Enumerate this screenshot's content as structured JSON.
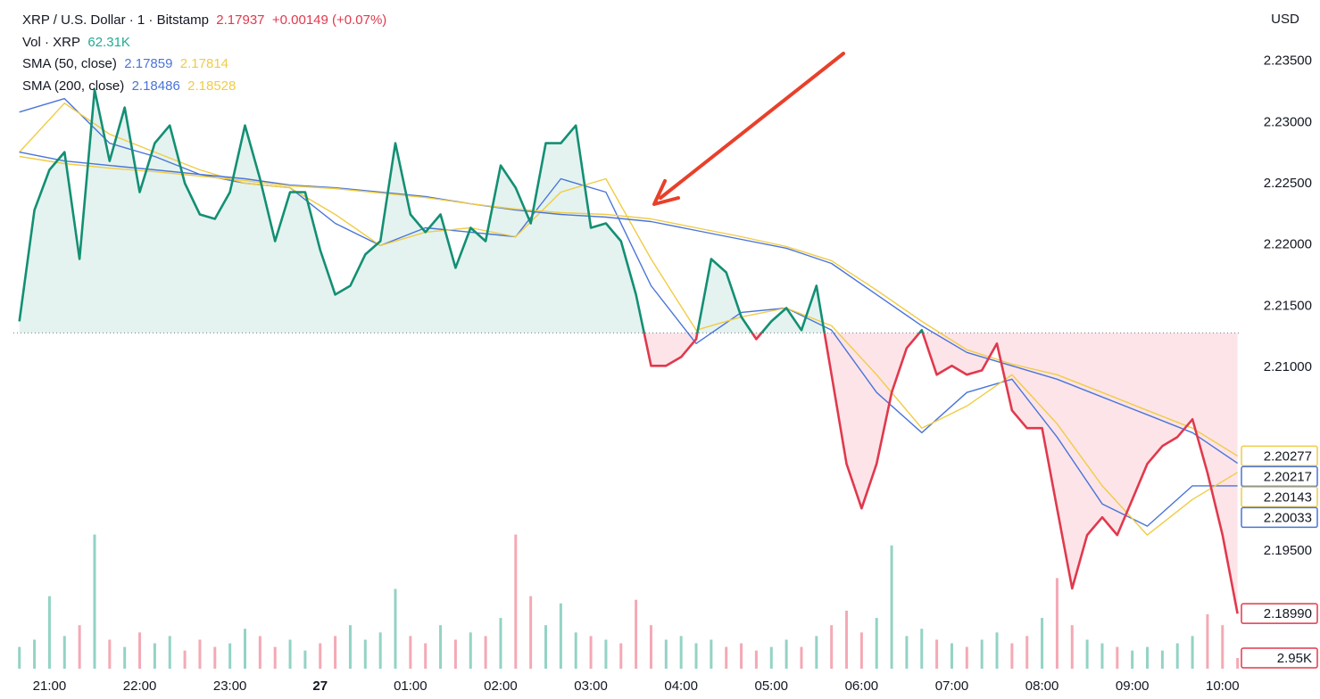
{
  "chart_data": {
    "type": "line",
    "currency": "USD",
    "legend": {
      "symbol": "XRP / U.S. Dollar · 1 · Bitstamp",
      "price": "2.17937",
      "change": "+0.00149 (+0.07%)",
      "volume_label": "Vol · XRP",
      "volume_value": "62.31K",
      "sma": [
        {
          "name": "SMA (50, close)",
          "values": [
            "2.17859",
            "2.17814"
          ]
        },
        {
          "name": "SMA (200, close)",
          "values": [
            "2.18486",
            "2.18528"
          ]
        }
      ]
    },
    "x": [
      "20:40",
      "20:50",
      "21:00",
      "21:10",
      "21:20",
      "21:30",
      "21:40",
      "21:50",
      "22:00",
      "22:10",
      "22:20",
      "22:30",
      "22:40",
      "22:50",
      "23:00",
      "23:10",
      "23:20",
      "23:30",
      "23:40",
      "23:50",
      "00:00",
      "00:10",
      "00:20",
      "00:30",
      "00:40",
      "00:50",
      "01:00",
      "01:10",
      "01:20",
      "01:30",
      "01:40",
      "01:50",
      "02:00",
      "02:10",
      "02:20",
      "02:30",
      "02:40",
      "02:50",
      "03:00",
      "03:10",
      "03:20",
      "03:30",
      "03:40",
      "03:50",
      "04:00",
      "04:10",
      "04:20",
      "04:30",
      "04:40",
      "04:50",
      "05:00",
      "05:10",
      "05:20",
      "05:30",
      "05:40",
      "05:50",
      "06:00",
      "06:10",
      "06:20",
      "06:30",
      "06:40",
      "06:50",
      "07:00",
      "07:10",
      "07:20",
      "07:30",
      "07:40",
      "07:50",
      "08:00",
      "08:10",
      "08:20",
      "08:30",
      "08:40",
      "08:50",
      "09:00",
      "09:10",
      "09:20",
      "09:30",
      "09:40",
      "09:50",
      "10:00",
      "10:10"
    ],
    "xlim": [
      "20:36",
      "10:12"
    ],
    "xticks": [
      "21:00",
      "22:00",
      "23:00",
      {
        "value": "00:00",
        "label": "27"
      },
      "01:00",
      "02:00",
      "03:00",
      "04:00",
      "05:00",
      "06:00",
      "07:00",
      "08:00",
      "09:00",
      "10:00"
    ],
    "ylim": [
      2.1854,
      2.24
    ],
    "yticks": [
      {
        "value": 2.235,
        "label": "2.23500"
      },
      {
        "value": 2.23,
        "label": "2.23000"
      },
      {
        "value": 2.225,
        "label": "2.22500"
      },
      {
        "value": 2.22,
        "label": "2.22000"
      },
      {
        "value": 2.215,
        "label": "2.21500"
      },
      {
        "value": 2.21,
        "label": "2.21000"
      },
      {
        "value": 2.195,
        "label": "2.19500"
      }
    ],
    "grid": false,
    "price": {
      "values": [
        2.21376,
        2.22285,
        2.22613,
        2.22758,
        2.21885,
        2.23267,
        2.22685,
        2.23122,
        2.22431,
        2.22831,
        2.22976,
        2.22504,
        2.22249,
        2.22213,
        2.22431,
        2.22976,
        2.2254,
        2.22031,
        2.22431,
        2.22431,
        2.21958,
        2.21595,
        2.21667,
        2.21922,
        2.22031,
        2.22831,
        2.22249,
        2.22104,
        2.22249,
        2.21813,
        2.2214,
        2.22031,
        2.22649,
        2.22467,
        2.22176,
        2.22831,
        2.22831,
        2.22976,
        2.2214,
        2.22176,
        2.22031,
        2.21595,
        2.21013,
        2.21013,
        2.21085,
        2.21231,
        2.21885,
        2.21776,
        2.21413,
        2.21231,
        2.21376,
        2.21485,
        2.21304,
        2.21667,
        2.2094,
        2.20213,
        2.19849,
        2.20213,
        2.20795,
        2.21158,
        2.21304,
        2.2094,
        2.21013,
        2.2094,
        2.20976,
        2.21195,
        2.20649,
        2.20504,
        2.20504,
        2.19849,
        2.19195,
        2.19631,
        2.19776,
        2.19631,
        2.19922,
        2.20213,
        2.20358,
        2.20431,
        2.20576,
        2.2014,
        2.19631,
        2.1899
      ],
      "baseline": 2.21282,
      "up_color": "#138f74",
      "down_color": "#e0394d",
      "up_fill": "#e4f3ef",
      "down_fill": "#fde4e8",
      "last_label": "2.18990"
    },
    "series": [
      {
        "color": "#4a74d9",
        "x": [
          "20:40",
          "21:10",
          "21:40",
          "22:10",
          "22:40",
          "23:10",
          "23:40",
          "00:10",
          "00:40",
          "01:10",
          "01:40",
          "02:10",
          "02:40",
          "03:10",
          "03:40",
          "04:10",
          "04:40",
          "05:10",
          "05:40",
          "06:10",
          "06:40",
          "07:10",
          "07:40",
          "08:10",
          "08:40",
          "09:10",
          "09:40",
          "10:10"
        ],
        "values": [
          2.23085,
          2.23195,
          2.22831,
          2.22722,
          2.22576,
          2.22504,
          2.22467,
          2.22176,
          2.21995,
          2.2214,
          2.22104,
          2.22067,
          2.2254,
          2.22431,
          2.21667,
          2.21195,
          2.21449,
          2.21485,
          2.21304,
          2.20795,
          2.20467,
          2.20795,
          2.20904,
          2.20431,
          2.19885,
          2.19704,
          2.20033,
          2.20033
        ]
      },
      {
        "color": "#f0cc45",
        "x": [
          "20:40",
          "21:10",
          "21:40",
          "22:10",
          "22:40",
          "23:10",
          "23:40",
          "00:10",
          "00:40",
          "01:10",
          "01:40",
          "02:10",
          "02:40",
          "03:10",
          "03:40",
          "04:10",
          "04:40",
          "05:10",
          "05:40",
          "06:10",
          "06:40",
          "07:10",
          "07:40",
          "08:10",
          "08:40",
          "09:10",
          "09:40",
          "10:10"
        ],
        "values": [
          2.22758,
          2.23158,
          2.22904,
          2.22758,
          2.22613,
          2.22504,
          2.22467,
          2.22249,
          2.21995,
          2.22104,
          2.2214,
          2.22067,
          2.22431,
          2.2254,
          2.21885,
          2.21304,
          2.21413,
          2.21485,
          2.2134,
          2.2094,
          2.20504,
          2.20685,
          2.2094,
          2.2054,
          2.20033,
          2.19631,
          2.19922,
          2.20143
        ]
      },
      {
        "color": "#4a74d9",
        "x": [
          "20:40",
          "21:10",
          "21:40",
          "22:10",
          "22:40",
          "23:10",
          "23:40",
          "00:10",
          "00:40",
          "01:10",
          "01:40",
          "02:10",
          "02:40",
          "03:10",
          "03:40",
          "04:10",
          "04:40",
          "05:10",
          "05:40",
          "06:10",
          "06:40",
          "07:10",
          "07:40",
          "08:10",
          "08:40",
          "09:10",
          "09:40",
          "10:10"
        ],
        "values": [
          2.22758,
          2.22685,
          2.22649,
          2.22613,
          2.22576,
          2.2254,
          2.22489,
          2.22467,
          2.22431,
          2.22395,
          2.22336,
          2.22285,
          2.22249,
          2.22227,
          2.22191,
          2.22118,
          2.22045,
          2.21973,
          2.21849,
          2.21595,
          2.2134,
          2.21122,
          2.21013,
          2.20904,
          2.20758,
          2.20613,
          2.20467,
          2.20217
        ]
      },
      {
        "color": "#f0cc45",
        "x": [
          "20:40",
          "21:10",
          "21:40",
          "22:10",
          "22:40",
          "23:10",
          "23:40",
          "00:10",
          "00:40",
          "01:10",
          "01:40",
          "02:10",
          "02:40",
          "03:10",
          "03:40",
          "04:10",
          "04:40",
          "05:10",
          "05:40",
          "06:10",
          "06:40",
          "07:10",
          "07:40",
          "08:10",
          "08:40",
          "09:10",
          "09:40",
          "10:10"
        ],
        "values": [
          2.22722,
          2.22664,
          2.22627,
          2.22598,
          2.22562,
          2.22525,
          2.22482,
          2.2246,
          2.22424,
          2.22387,
          2.22336,
          2.22293,
          2.22264,
          2.22249,
          2.22213,
          2.2214,
          2.22067,
          2.21987,
          2.21871,
          2.21631,
          2.21376,
          2.21144,
          2.21027,
          2.2094,
          2.20795,
          2.20649,
          2.20504,
          2.20277
        ]
      }
    ],
    "volume": {
      "values": [
        6000,
        8000,
        20000,
        9000,
        12000,
        37000,
        8000,
        6000,
        10000,
        7000,
        9000,
        5000,
        8000,
        6000,
        7000,
        11000,
        9000,
        6000,
        8000,
        5000,
        7000,
        9000,
        12000,
        8000,
        10000,
        22000,
        9000,
        7000,
        12000,
        8000,
        10000,
        9000,
        14000,
        37000,
        20000,
        12000,
        18000,
        10000,
        9000,
        8000,
        7000,
        19000,
        12000,
        8000,
        9000,
        7000,
        8000,
        6000,
        7000,
        5000,
        6000,
        8000,
        6000,
        9000,
        12000,
        16000,
        10000,
        14000,
        34000,
        9000,
        11000,
        8000,
        7000,
        6000,
        8000,
        10000,
        7000,
        9000,
        14000,
        25000,
        12000,
        8000,
        7000,
        6000,
        5000,
        6000,
        5000,
        7000,
        9000,
        15000,
        12000,
        2950
      ],
      "vlim": [
        0,
        60000
      ],
      "up_color": "#93d3c5",
      "down_color": "#f4a9b4",
      "last_label": "2.95K"
    }
  }
}
